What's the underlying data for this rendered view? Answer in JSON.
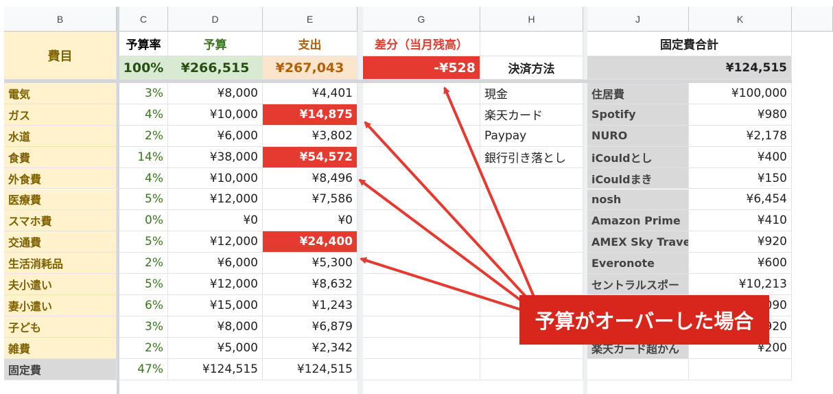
{
  "columns": [
    "B",
    "C",
    "D",
    "E",
    "G",
    "H",
    "J",
    "K"
  ],
  "header": {
    "category_label": "費目",
    "rate_label": "予算率",
    "budget_label": "予算",
    "expense_label": "支出",
    "diff_label": "差分（当月残高）",
    "fixed_total_label": "固定費合計",
    "payment_label": "決済方法",
    "rate_total": "100%",
    "budget_total": "¥266,515",
    "expense_total": "¥267,043",
    "diff_total": "-¥528",
    "fixed_total": "¥124,515"
  },
  "rows": [
    {
      "category": "電気",
      "rate": "3%",
      "budget": "¥8,000",
      "expense": "¥4,401",
      "over": false
    },
    {
      "category": "ガス",
      "rate": "4%",
      "budget": "¥10,000",
      "expense": "¥14,875",
      "over": true
    },
    {
      "category": "水道",
      "rate": "2%",
      "budget": "¥6,000",
      "expense": "¥3,802",
      "over": false
    },
    {
      "category": "食費",
      "rate": "14%",
      "budget": "¥38,000",
      "expense": "¥54,572",
      "over": true
    },
    {
      "category": "外食費",
      "rate": "4%",
      "budget": "¥10,000",
      "expense": "¥8,496",
      "over": false
    },
    {
      "category": "医療費",
      "rate": "5%",
      "budget": "¥12,000",
      "expense": "¥7,586",
      "over": false
    },
    {
      "category": "スマホ費",
      "rate": "0%",
      "budget": "¥0",
      "expense": "¥0",
      "over": false
    },
    {
      "category": "交通費",
      "rate": "5%",
      "budget": "¥12,000",
      "expense": "¥24,400",
      "over": true
    },
    {
      "category": "生活消耗品",
      "rate": "2%",
      "budget": "¥6,000",
      "expense": "¥5,300",
      "over": false
    },
    {
      "category": "夫小遣い",
      "rate": "5%",
      "budget": "¥12,000",
      "expense": "¥8,632",
      "over": false
    },
    {
      "category": "妻小遣い",
      "rate": "6%",
      "budget": "¥15,000",
      "expense": "¥1,243",
      "over": false
    },
    {
      "category": "子ども",
      "rate": "3%",
      "budget": "¥8,000",
      "expense": "¥6,879",
      "over": false
    },
    {
      "category": "雑費",
      "rate": "2%",
      "budget": "¥5,000",
      "expense": "¥2,342",
      "over": false
    },
    {
      "category": "固定費",
      "rate": "47%",
      "budget": "¥124,515",
      "expense": "¥124,515",
      "over": false,
      "fixed": true
    }
  ],
  "payment_methods": [
    "現金",
    "楽天カード",
    "Paypay",
    "銀行引き落とし"
  ],
  "fixed_costs": [
    {
      "name": "住居費",
      "amount": "¥100,000"
    },
    {
      "name": "Spotify",
      "amount": "¥980"
    },
    {
      "name": "NURO",
      "amount": "¥2,178"
    },
    {
      "name": "iCouldとし",
      "amount": "¥400"
    },
    {
      "name": "iCouldまき",
      "amount": "¥150"
    },
    {
      "name": "nosh",
      "amount": "¥6,454"
    },
    {
      "name": "Amazon Prime",
      "amount": "¥410"
    },
    {
      "name": "AMEX Sky Travel",
      "amount": "¥920"
    },
    {
      "name": "Everonote",
      "amount": "¥600"
    },
    {
      "name": "セントラルスポー",
      "amount": "¥10,213"
    },
    {
      "name": "",
      "amount": "090"
    },
    {
      "name": "",
      "amount": "920"
    },
    {
      "name": "楽天カード超かん",
      "amount": "¥200"
    }
  ],
  "callout_text": "予算がオーバーした場合",
  "colors": {
    "over": "#e53a2f",
    "callout": "#d9261c",
    "category_bg": "#fff2cc",
    "budget_bg": "#d9ead3",
    "expense_bg": "#fce5cd"
  }
}
